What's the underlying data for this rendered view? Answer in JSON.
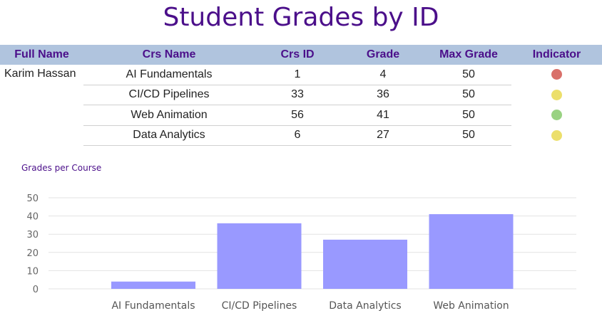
{
  "page_title": "Student Grades by ID",
  "table": {
    "headers": [
      "Full Name",
      "Crs Name",
      "Crs ID",
      "Grade",
      "Max Grade",
      "Indicator"
    ],
    "student_name": "Karim Hassan",
    "rows": [
      {
        "course": "AI Fundamentals",
        "crs_id": "1",
        "grade": "4",
        "max_grade": "50",
        "indicator": "red",
        "indicator_color": "#d9706a"
      },
      {
        "course": "CI/CD Pipelines",
        "crs_id": "33",
        "grade": "36",
        "max_grade": "50",
        "indicator": "yellow",
        "indicator_color": "#ecdf6b"
      },
      {
        "course": "Web Animation",
        "crs_id": "56",
        "grade": "41",
        "max_grade": "50",
        "indicator": "green",
        "indicator_color": "#99d282"
      },
      {
        "course": "Data Analytics",
        "crs_id": "6",
        "grade": "27",
        "max_grade": "50",
        "indicator": "yellow",
        "indicator_color": "#ecdf6b"
      }
    ]
  },
  "colors": {
    "title": "#4b0f8a",
    "header_bg": "#b0c4de",
    "bar": "#9999ff"
  },
  "chart_data": {
    "type": "bar",
    "title": "Grades per Course",
    "categories": [
      "AI Fundamentals",
      "CI/CD Pipelines",
      "Data Analytics",
      "Web Animation"
    ],
    "values": [
      4,
      36,
      27,
      41
    ],
    "ylim": [
      0,
      50
    ],
    "yticks": [
      0,
      10,
      20,
      30,
      40,
      50
    ],
    "grid": true
  }
}
